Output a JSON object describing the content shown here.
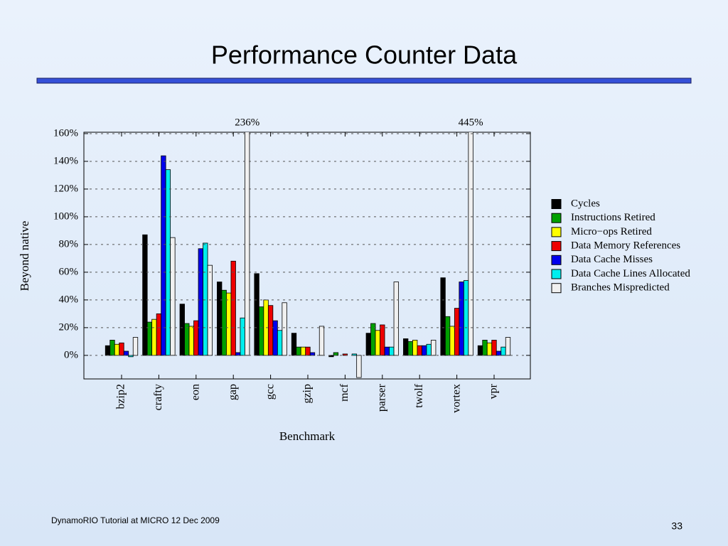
{
  "slide": {
    "title": "Performance Counter Data",
    "footer": "DynamoRIO Tutorial at MICRO 12 Dec 2009",
    "page_number": "33"
  },
  "chart_data": {
    "type": "bar",
    "x_label": "Benchmark",
    "y_label": "Beyond native",
    "categories": [
      "bzip2",
      "crafty",
      "eon",
      "gap",
      "gcc",
      "gzip",
      "mcf",
      "parser",
      "twolf",
      "vortex",
      "vpr"
    ],
    "series": [
      {
        "name": "Cycles",
        "color": "#000000",
        "values": [
          7,
          87,
          37,
          53,
          59,
          16,
          -1,
          16,
          12,
          56,
          7
        ]
      },
      {
        "name": "Instructions Retired",
        "color": "#00a000",
        "values": [
          11,
          24,
          23,
          47,
          35,
          6,
          2,
          23,
          10,
          28,
          11
        ]
      },
      {
        "name": "Micro−ops Retired",
        "color": "#ffff00",
        "values": [
          8,
          26,
          21,
          45,
          40,
          6,
          0,
          18,
          11,
          21,
          9
        ]
      },
      {
        "name": "Data Memory References",
        "color": "#ee0000",
        "values": [
          9,
          30,
          25,
          68,
          36,
          6,
          1,
          22,
          7,
          34,
          11
        ]
      },
      {
        "name": "Data Cache Misses",
        "color": "#0000ee",
        "values": [
          3,
          144,
          77,
          2,
          25,
          2,
          0,
          6,
          7,
          53,
          3
        ]
      },
      {
        "name": "Data Cache Lines Allocated",
        "color": "#00eeee",
        "values": [
          -1,
          134,
          81,
          27,
          18,
          0,
          1,
          6,
          8,
          54,
          6
        ]
      },
      {
        "name": "Branches Mispredicted",
        "color": "#f0f0f0",
        "values": [
          13,
          85,
          65,
          236,
          38,
          21,
          -16,
          53,
          11,
          445,
          13
        ],
        "value_labels": [
          null,
          null,
          null,
          "236%",
          null,
          null,
          null,
          null,
          null,
          "445%",
          null
        ]
      }
    ],
    "ylim": [
      -17,
      161
    ],
    "yticks": [
      {
        "value": 0,
        "label": "0%"
      },
      {
        "value": 20,
        "label": "20%"
      },
      {
        "value": 40,
        "label": "40%"
      },
      {
        "value": 60,
        "label": "60%"
      },
      {
        "value": 80,
        "label": "80%"
      },
      {
        "value": 100,
        "label": "100%"
      },
      {
        "value": 120,
        "label": "120%"
      },
      {
        "value": 140,
        "label": "140%"
      },
      {
        "value": 160,
        "label": "160%"
      }
    ],
    "grid": true
  }
}
